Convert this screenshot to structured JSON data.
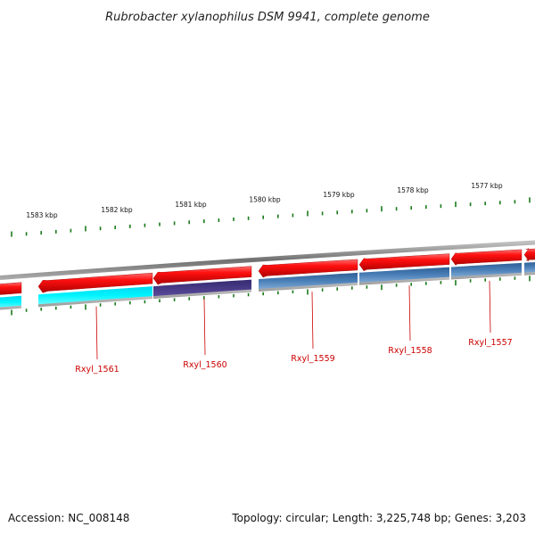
{
  "title": "Rubrobacter xylanophilus DSM 9941, complete genome",
  "ruler": {
    "labels": [
      "1583 kbp",
      "1582 kbp",
      "1581 kbp",
      "1580 kbp",
      "1579 kbp",
      "1578 kbp",
      "1577 kbp"
    ]
  },
  "genes": [
    {
      "label": "Rxyl_1561"
    },
    {
      "label": "Rxyl_1560"
    },
    {
      "label": "Rxyl_1559"
    },
    {
      "label": "Rxyl_1558"
    },
    {
      "label": "Rxyl_1557"
    }
  ],
  "colors": {
    "cds_forward": "#ee1111",
    "lane_blue": "#4a7fb8",
    "lane_cyan": "#00f0ff",
    "lane_purple": "#4a3a8a",
    "tick_green": "#1a7a1a",
    "backbone": "#888888",
    "label_red": "#cc0000"
  },
  "footer": {
    "accession": "Accession: NC_008148",
    "summary": "Topology: circular; Length: 3,225,748 bp; Genes: 3,203"
  }
}
